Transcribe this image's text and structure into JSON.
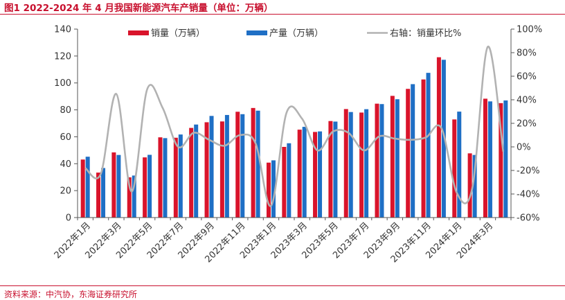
{
  "title": "图1  2022-2024 年 4 月我国新能源汽车产销量（单位：万辆）",
  "source": "资料来源：中汽协，东海证券研究所",
  "colors": {
    "sales": "#d9142b",
    "production": "#1f6fc5",
    "mom": "#b2b2b2",
    "brand": "#c8102e"
  },
  "chart_data": {
    "type": "bar+line",
    "categories": [
      "2022年1月",
      "2022年2月",
      "2022年3月",
      "2022年4月",
      "2022年5月",
      "2022年6月",
      "2022年7月",
      "2022年8月",
      "2022年9月",
      "2022年10月",
      "2022年11月",
      "2022年12月",
      "2023年1月",
      "2023年2月",
      "2023年3月",
      "2023年4月",
      "2023年5月",
      "2023年6月",
      "2023年7月",
      "2023年8月",
      "2023年9月",
      "2023年10月",
      "2023年11月",
      "2023年12月",
      "2024年1月",
      "2024年2月",
      "2024年3月",
      "2024年4月"
    ],
    "x_tick_labels": [
      "2022年1月",
      "2022年3月",
      "2022年5月",
      "2022年7月",
      "2022年9月",
      "2022年11月",
      "2023年1月",
      "2023年3月",
      "2023年5月",
      "2023年7月",
      "2023年9月",
      "2023年11月",
      "2024年1月",
      "2024年3月"
    ],
    "series": [
      {
        "name": "销量（万辆）",
        "type": "bar",
        "axis": "left",
        "values": [
          43.1,
          33.4,
          48.4,
          29.9,
          44.7,
          59.6,
          59.3,
          66.6,
          70.8,
          71.4,
          78.6,
          81.4,
          40.8,
          52.5,
          65.3,
          63.6,
          71.7,
          80.6,
          78.0,
          84.6,
          90.4,
          95.6,
          102.6,
          119.1,
          72.9,
          47.7,
          88.3,
          85.0
        ]
      },
      {
        "name": "产量（万辆）",
        "type": "bar",
        "axis": "right-of-pair",
        "values": [
          45.2,
          36.8,
          46.5,
          31.2,
          46.6,
          59.0,
          61.7,
          69.1,
          75.5,
          76.2,
          76.8,
          79.4,
          42.5,
          55.2,
          67.4,
          64.0,
          71.3,
          78.4,
          80.5,
          84.3,
          87.9,
          99.1,
          107.5,
          117.2,
          78.7,
          46.5,
          86.3,
          87.0
        ]
      },
      {
        "name": "右轴：销量环比%",
        "type": "line",
        "axis": "right",
        "values": [
          -18,
          -23,
          45,
          -38,
          49,
          33,
          0,
          12,
          6,
          1,
          10,
          3,
          -50,
          29,
          24,
          -3,
          13,
          12,
          -3,
          9,
          7,
          6,
          8,
          16,
          -39,
          -35,
          85,
          -4
        ]
      }
    ],
    "y_left": {
      "min": 0,
      "max": 140,
      "ticks": [
        0,
        20,
        40,
        60,
        80,
        100,
        120,
        140
      ]
    },
    "y_right": {
      "min": -60,
      "max": 100,
      "ticks": [
        -60,
        -40,
        -20,
        0,
        20,
        40,
        60,
        80,
        100
      ],
      "tick_labels": [
        "-60%",
        "-40%",
        "-20%",
        "0%",
        "20%",
        "40%",
        "60%",
        "80%",
        "100%"
      ]
    },
    "legend_position": "top"
  }
}
